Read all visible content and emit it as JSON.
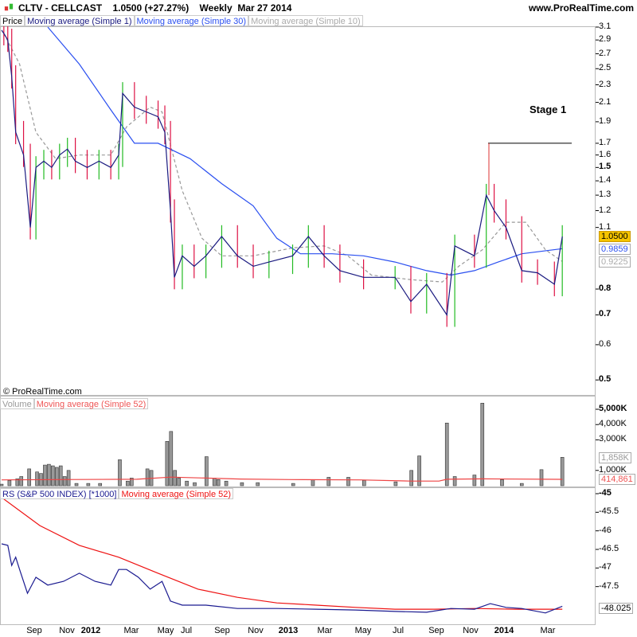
{
  "header": {
    "symbol": "CLTV - CELLCAST",
    "quote": "1.0500 (+27.27%)",
    "period": "Weekly",
    "date": "Mar 27 2014",
    "site": "www.ProRealTime.com"
  },
  "price_legend": [
    "Price",
    "Moving average (Simple 1)",
    "Moving average (Simple 30)",
    "Moving average (Simple 10)"
  ],
  "volume_legend": [
    "Volume",
    "Moving average (Simple 52)"
  ],
  "rs_legend": [
    "RS (S&P 500 INDEX) [*1000]",
    "Moving average (Simple 52)"
  ],
  "copyright": "© ProRealTime.com",
  "annotation": "Stage 1",
  "colors": {
    "ma1": "#1a1a80",
    "ma30": "#2a4ff0",
    "ma10": "#999999",
    "up": "#22bb22",
    "down": "#dd1144",
    "rs": "#1a1a90",
    "rs_ma": "#ee1111",
    "vol_ma": "#ee4444",
    "last": "#f5c400"
  },
  "chart_data": [
    {
      "type": "line",
      "panel": "price",
      "scale": "log",
      "ylim": [
        0.47,
        3.2
      ],
      "yticks": [
        "3.1",
        "2.9",
        "2.7",
        "2.5",
        "2.3",
        "2.1",
        "1.9",
        "1.7",
        "1.6",
        "1.5",
        "1.4",
        "1.3",
        "1.2",
        "1.1",
        "0.8",
        "0.7",
        "0.6",
        "0.5"
      ],
      "last_labels": {
        "price": "1.0500",
        "ma30": "0.9859",
        "ma10": "0.9225"
      },
      "stage1_level": 1.7,
      "series": [
        {
          "name": "Moving average (Simple 1)",
          "points": [
            [
              "2011-07-05",
              3.05
            ],
            [
              "2011-07-09",
              3.0
            ],
            [
              "2011-07-16",
              2.9
            ],
            [
              "2011-07-23",
              2.4
            ],
            [
              "2011-07-30",
              1.8
            ],
            [
              "2011-08-13",
              1.6
            ],
            [
              "2011-08-25",
              1.1
            ],
            [
              "2011-09-04",
              1.5
            ],
            [
              "2011-09-18",
              1.55
            ],
            [
              "2011-10-02",
              1.5
            ],
            [
              "2011-10-16",
              1.6
            ],
            [
              "2011-10-30",
              1.65
            ],
            [
              "2011-11-13",
              1.55
            ],
            [
              "2011-12-04",
              1.5
            ],
            [
              "2011-12-25",
              1.55
            ],
            [
              "2012-01-15",
              1.5
            ],
            [
              "2012-01-29",
              1.6
            ],
            [
              "2012-02-05",
              2.2
            ],
            [
              "2012-02-26",
              2.05
            ],
            [
              "2012-03-18",
              2.0
            ],
            [
              "2012-04-08",
              1.95
            ],
            [
              "2012-04-20",
              1.8
            ],
            [
              "2012-04-30",
              1.2
            ],
            [
              "2012-05-07",
              0.85
            ],
            [
              "2012-05-21",
              0.95
            ],
            [
              "2012-06-11",
              0.9
            ],
            [
              "2012-07-02",
              0.95
            ],
            [
              "2012-07-30",
              1.05
            ],
            [
              "2012-08-27",
              0.95
            ],
            [
              "2012-09-24",
              0.9
            ],
            [
              "2012-10-22",
              0.92
            ],
            [
              "2012-12-03",
              0.95
            ],
            [
              "2012-12-31",
              1.05
            ],
            [
              "2013-01-28",
              0.95
            ],
            [
              "2013-02-25",
              0.88
            ],
            [
              "2013-04-08",
              0.85
            ],
            [
              "2013-06-03",
              0.85
            ],
            [
              "2013-07-01",
              0.75
            ],
            [
              "2013-07-29",
              0.82
            ],
            [
              "2013-09-03",
              0.7
            ],
            [
              "2013-09-17",
              1.0
            ],
            [
              "2013-10-22",
              0.95
            ],
            [
              "2013-11-12",
              1.3
            ],
            [
              "2013-11-26",
              1.2
            ],
            [
              "2013-12-17",
              1.1
            ],
            [
              "2014-01-14",
              0.88
            ],
            [
              "2014-02-11",
              0.87
            ],
            [
              "2014-03-13",
              0.82
            ],
            [
              "2014-03-27",
              1.05
            ]
          ]
        },
        {
          "name": "Moving average (Simple 30)",
          "points": [
            [
              "2011-09-25",
              3.1
            ],
            [
              "2011-11-20",
              2.56
            ],
            [
              "2012-01-15",
              2.02
            ],
            [
              "2012-02-26",
              1.7
            ],
            [
              "2012-04-08",
              1.7
            ],
            [
              "2012-06-04",
              1.57
            ],
            [
              "2012-07-30",
              1.38
            ],
            [
              "2012-09-24",
              1.23
            ],
            [
              "2012-11-05",
              1.04
            ],
            [
              "2012-12-17",
              0.96
            ],
            [
              "2013-02-11",
              0.96
            ],
            [
              "2013-04-08",
              0.95
            ],
            [
              "2013-06-03",
              0.92
            ],
            [
              "2013-07-29",
              0.88
            ],
            [
              "2013-09-10",
              0.86
            ],
            [
              "2013-10-22",
              0.88
            ],
            [
              "2013-12-03",
              0.92
            ],
            [
              "2014-01-14",
              0.96
            ],
            [
              "2014-03-27",
              0.9859
            ]
          ]
        },
        {
          "name": "Moving average (Simple 10)",
          "points": [
            [
              "2011-07-09",
              3.0
            ],
            [
              "2011-08-06",
              2.56
            ],
            [
              "2011-09-04",
              1.8
            ],
            [
              "2011-10-09",
              1.57
            ],
            [
              "2011-11-20",
              1.6
            ],
            [
              "2012-01-15",
              1.6
            ],
            [
              "2012-02-12",
              1.85
            ],
            [
              "2012-03-25",
              2.05
            ],
            [
              "2012-04-15",
              2.0
            ],
            [
              "2012-05-21",
              1.33
            ],
            [
              "2012-06-25",
              1.04
            ],
            [
              "2012-07-30",
              0.95
            ],
            [
              "2012-09-24",
              0.95
            ],
            [
              "2012-12-03",
              0.99
            ],
            [
              "2013-01-28",
              1.0
            ],
            [
              "2013-03-11",
              0.95
            ],
            [
              "2013-04-22",
              0.86
            ],
            [
              "2013-07-01",
              0.84
            ],
            [
              "2013-08-26",
              0.83
            ],
            [
              "2013-09-24",
              0.9
            ],
            [
              "2013-11-05",
              0.98
            ],
            [
              "2013-12-17",
              1.13
            ],
            [
              "2014-01-21",
              1.13
            ],
            [
              "2014-02-25",
              0.98
            ],
            [
              "2014-03-27",
              0.9225
            ]
          ]
        }
      ]
    },
    {
      "type": "bar",
      "panel": "volume",
      "unit": "K",
      "ylim": [
        0,
        5600
      ],
      "yticks": [
        "5,000K",
        "4,000K",
        "3,000K",
        "1,000K"
      ],
      "last_labels": {
        "volume": "1,858K",
        "ma": "414,861"
      },
      "bars": [
        [
          "2011-07-05",
          100
        ],
        [
          "2011-07-19",
          350
        ],
        [
          "2011-08-02",
          450
        ],
        [
          "2011-08-09",
          600
        ],
        [
          "2011-08-23",
          1100
        ],
        [
          "2011-09-06",
          900
        ],
        [
          "2011-09-13",
          800
        ],
        [
          "2011-09-20",
          1350
        ],
        [
          "2011-09-27",
          1400
        ],
        [
          "2011-10-04",
          1300
        ],
        [
          "2011-10-11",
          1200
        ],
        [
          "2011-10-18",
          1300
        ],
        [
          "2011-10-25",
          600
        ],
        [
          "2011-11-01",
          1000
        ],
        [
          "2011-11-15",
          150
        ],
        [
          "2011-12-06",
          150
        ],
        [
          "2011-12-27",
          150
        ],
        [
          "2012-01-31",
          1700
        ],
        [
          "2012-02-14",
          300
        ],
        [
          "2012-02-21",
          500
        ],
        [
          "2012-03-20",
          1100
        ],
        [
          "2012-03-27",
          1000
        ],
        [
          "2012-04-24",
          2900
        ],
        [
          "2012-05-01",
          3550
        ],
        [
          "2012-05-08",
          1000
        ],
        [
          "2012-05-15",
          500
        ],
        [
          "2012-05-29",
          300
        ],
        [
          "2012-06-12",
          200
        ],
        [
          "2012-07-03",
          1900
        ],
        [
          "2012-07-17",
          500
        ],
        [
          "2012-07-24",
          400
        ],
        [
          "2012-08-07",
          300
        ],
        [
          "2012-09-04",
          200
        ],
        [
          "2012-10-02",
          200
        ],
        [
          "2012-12-04",
          150
        ],
        [
          "2013-01-08",
          400
        ],
        [
          "2013-02-05",
          550
        ],
        [
          "2013-03-12",
          550
        ],
        [
          "2013-04-09",
          350
        ],
        [
          "2013-06-04",
          250
        ],
        [
          "2013-07-02",
          1000
        ],
        [
          "2013-07-16",
          1950
        ],
        [
          "2013-09-03",
          4100
        ],
        [
          "2013-09-17",
          600
        ],
        [
          "2013-10-22",
          700
        ],
        [
          "2013-11-05",
          5400
        ],
        [
          "2013-12-10",
          400
        ],
        [
          "2014-01-14",
          150
        ],
        [
          "2014-02-18",
          1050
        ],
        [
          "2014-03-27",
          1858
        ]
      ],
      "ma_points": [
        [
          "2011-07-05",
          380
        ],
        [
          "2011-10-11",
          400
        ],
        [
          "2012-03-01",
          420
        ],
        [
          "2012-05-01",
          560
        ],
        [
          "2012-09-01",
          440
        ],
        [
          "2012-12-01",
          400
        ],
        [
          "2013-04-01",
          380
        ],
        [
          "2013-07-01",
          300
        ],
        [
          "2013-08-20",
          300
        ],
        [
          "2013-09-03",
          420
        ],
        [
          "2013-11-05",
          450
        ],
        [
          "2014-03-27",
          415
        ]
      ]
    },
    {
      "type": "line",
      "panel": "rs",
      "ylim": [
        -48.35,
        -44.8
      ],
      "yticks": [
        "-45",
        "-45.5",
        "-46",
        "-46.5",
        "-47",
        "-47.5"
      ],
      "last_label": "-48.025",
      "series": [
        {
          "name": "RS (S&P 500 INDEX) [*1000]",
          "points": [
            [
              "2011-07-05",
              -46.35
            ],
            [
              "2011-07-16",
              -46.39
            ],
            [
              "2011-07-23",
              -46.93
            ],
            [
              "2011-07-30",
              -46.71
            ],
            [
              "2011-08-06",
              -47.04
            ],
            [
              "2011-08-20",
              -47.68
            ],
            [
              "2011-09-04",
              -47.25
            ],
            [
              "2011-09-25",
              -47.46
            ],
            [
              "2011-10-23",
              -47.36
            ],
            [
              "2011-11-20",
              -47.14
            ],
            [
              "2011-12-18",
              -47.36
            ],
            [
              "2012-01-15",
              -47.46
            ],
            [
              "2012-01-29",
              -47.04
            ],
            [
              "2012-02-12",
              -47.04
            ],
            [
              "2012-03-04",
              -47.25
            ],
            [
              "2012-03-25",
              -47.57
            ],
            [
              "2012-04-15",
              -47.36
            ],
            [
              "2012-04-30",
              -47.89
            ],
            [
              "2012-05-21",
              -48.0
            ],
            [
              "2012-07-02",
              -48.0
            ],
            [
              "2012-08-27",
              -48.09
            ],
            [
              "2012-11-05",
              -48.09
            ],
            [
              "2013-01-14",
              -48.11
            ],
            [
              "2013-03-25",
              -48.13
            ],
            [
              "2013-06-03",
              -48.17
            ],
            [
              "2013-07-29",
              -48.19
            ],
            [
              "2013-09-10",
              -48.09
            ],
            [
              "2013-10-22",
              -48.11
            ],
            [
              "2013-11-19",
              -47.96
            ],
            [
              "2013-12-17",
              -48.06
            ],
            [
              "2014-01-14",
              -48.09
            ],
            [
              "2014-02-25",
              -48.21
            ],
            [
              "2014-03-27",
              -48.03
            ]
          ]
        },
        {
          "name": "Moving average (Simple 52)",
          "points": [
            [
              "2011-07-05",
              -45.1
            ],
            [
              "2011-09-11",
              -45.86
            ],
            [
              "2011-11-20",
              -46.39
            ],
            [
              "2012-01-29",
              -46.71
            ],
            [
              "2012-04-08",
              -47.14
            ],
            [
              "2012-06-18",
              -47.57
            ],
            [
              "2012-08-27",
              -47.79
            ],
            [
              "2012-11-05",
              -47.94
            ],
            [
              "2013-01-14",
              -48.0
            ],
            [
              "2013-03-25",
              -48.06
            ],
            [
              "2013-06-03",
              -48.11
            ],
            [
              "2013-08-12",
              -48.11
            ],
            [
              "2013-10-22",
              -48.09
            ],
            [
              "2013-12-31",
              -48.11
            ],
            [
              "2014-03-27",
              -48.11
            ]
          ]
        }
      ]
    }
  ],
  "x_axis": [
    "Sep",
    "Nov",
    "2012",
    "Mar",
    "May",
    "Jul",
    "Sep",
    "Nov",
    "2013",
    "Mar",
    "May",
    "Jul",
    "Sep",
    "Nov",
    "2014",
    "Mar"
  ]
}
